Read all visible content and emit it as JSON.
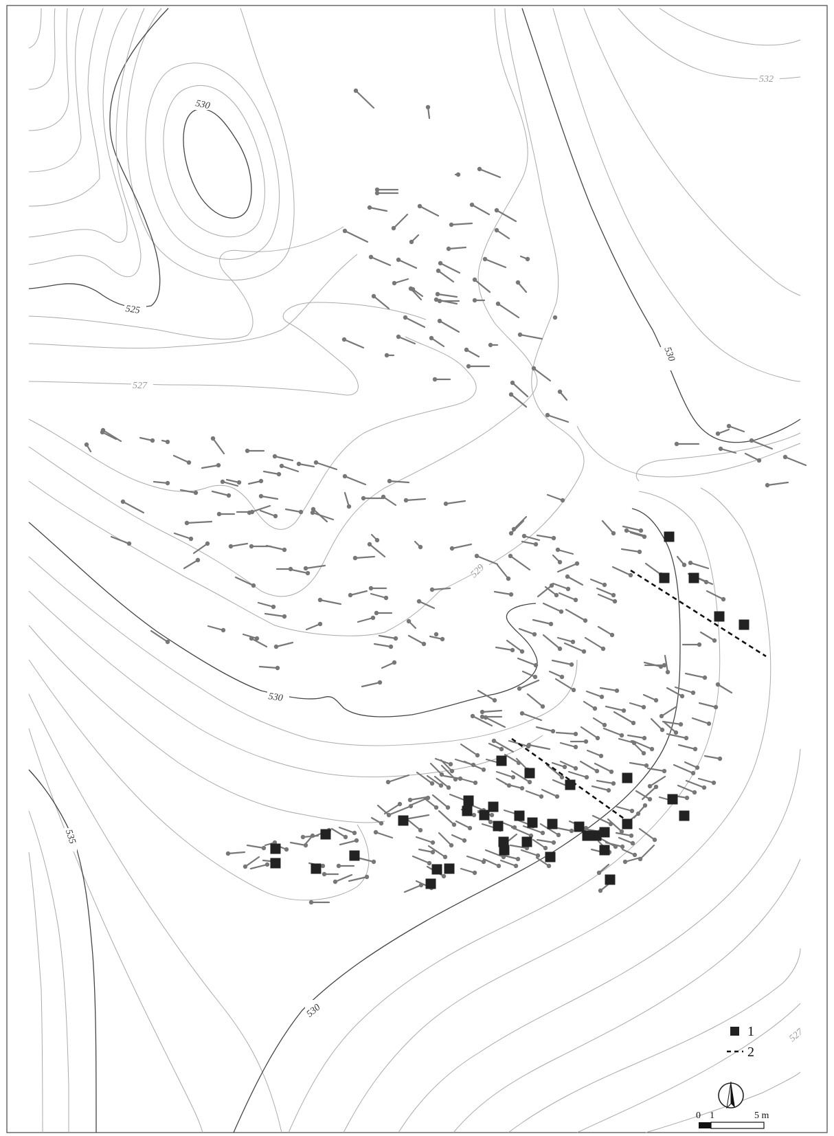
{
  "contour_labels": {
    "label_530_top": "530",
    "label_525": "525",
    "label_527_left": "527",
    "label_529": "529",
    "label_530_right": "530",
    "label_532": "532",
    "label_530_mid": "530",
    "label_535": "535",
    "label_530_bottom": "530",
    "label_527_right": "527"
  },
  "legend": {
    "item_1": "1",
    "item_2": "2"
  },
  "scale_bar": {
    "tick_0": "0",
    "tick_1": "1",
    "tick_5": "5 m"
  },
  "symbols": {
    "north_arrow": "north-arrow-icon",
    "square_marker": "filled-square",
    "dashed_line": "dashed-line"
  }
}
